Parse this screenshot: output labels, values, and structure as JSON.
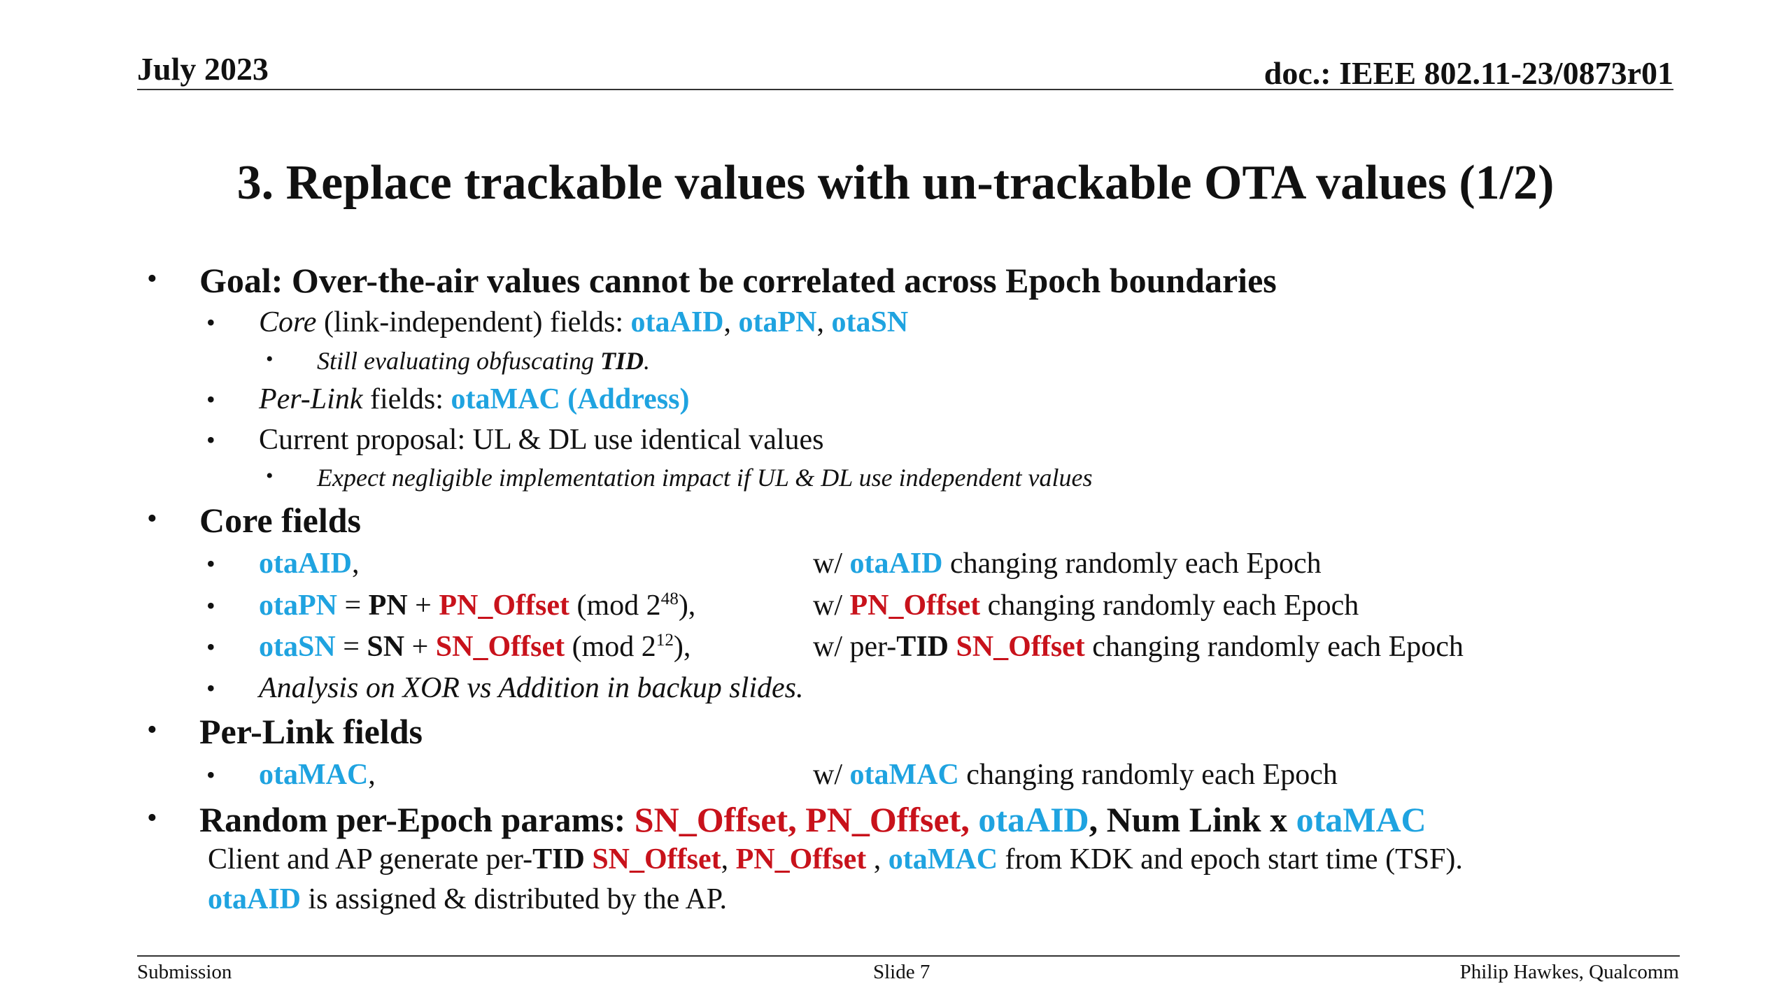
{
  "header": {
    "date": "July 2023",
    "doc_id": "doc.: IEEE 802.11-23/0873r01"
  },
  "title": "3. Replace trackable values with un-trackable OTA values (1/2)",
  "goal": {
    "text": "Goal: Over-the-air values cannot be correlated across Epoch boundaries",
    "core_italic": "Core",
    "core_text": " (link-independent) fields: ",
    "core_items": [
      "otaAID",
      "otaPN",
      "otaSN"
    ],
    "tid_italic": "Still evaluating obfuscating ",
    "tid_bold": "TID",
    "tid_end": ".",
    "perlink_italic": "Per-Link",
    "perlink_text": " fields: ",
    "perlink_value": "otaMAC (Address)",
    "proposal": "Current proposal: UL & DL use identical values",
    "expect": "Expect negligible implementation impact if UL & DL use independent values"
  },
  "core_fields": {
    "heading": "Core fields",
    "aid_name": "otaAID",
    "aid_desc_pre": "w/ ",
    "aid_desc_val": "otaAID",
    "aid_desc_post": " changing randomly each Epoch",
    "pn_name": "otaPN",
    "pn_eq": " = ",
    "pn_base": "PN",
    "pn_plus": " + ",
    "pn_offset": "PN_Offset",
    "pn_mod": " (mod 2",
    "pn_exp": "48",
    "pn_close": "),",
    "pn_desc_pre": "w/ ",
    "pn_desc_val": "PN_Offset",
    "pn_desc_post": " changing randomly each Epoch",
    "sn_name": "otaSN",
    "sn_eq": " = ",
    "sn_base": "SN",
    "sn_plus": " + ",
    "sn_offset": "SN_Offset",
    "sn_mod": " (mod 2",
    "sn_exp": "12",
    "sn_close": "),",
    "sn_desc_pre": "w/ per-",
    "sn_desc_tid": "TID",
    "sn_desc_val": "SN_Offset",
    "sn_desc_post": " changing randomly each Epoch",
    "analysis": "Analysis on XOR vs Addition in backup slides."
  },
  "per_link": {
    "heading": "Per-Link fields",
    "mac_name": "otaMAC",
    "mac_desc_pre": "w/ ",
    "mac_desc_val": "otaMAC",
    "mac_desc_post": " changing randomly each Epoch"
  },
  "random_params": {
    "label": "Random per-Epoch params: ",
    "red": "SN_Offset, PN_Offset,",
    "blue1": "otaAID",
    "mid": ", Num Link x ",
    "blue2": "otaMAC",
    "line1_a": "Client and AP generate per-",
    "line1_tid": "TID",
    "line1_sn": "SN_Offset",
    "line1_comma": ", ",
    "line1_pn": "PN_Offset",
    "line1_sp": " , ",
    "line1_mac": "otaMAC",
    "line1_end": " from KDK and epoch start time (TSF).",
    "line2_aid": "otaAID",
    "line2_end": " is assigned & distributed by the AP."
  },
  "footer": {
    "left": "Submission",
    "center": "Slide 7",
    "right": "Philip Hawkes, Qualcomm"
  },
  "colors": {
    "blue": "#1fa3e0",
    "red": "#c8121b"
  }
}
